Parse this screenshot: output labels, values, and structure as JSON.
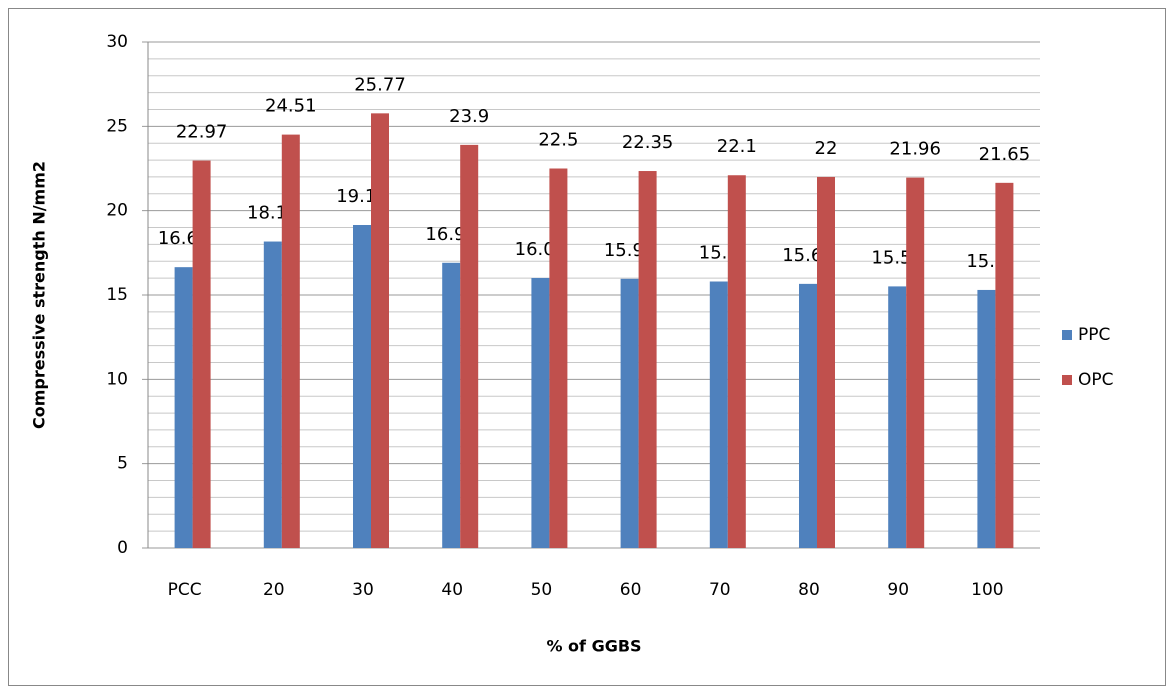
{
  "chart_data": {
    "type": "bar",
    "x_label": "% of GGBS",
    "y_label": "Compressive strength N/mm2",
    "categories": [
      "PCC",
      "20",
      "30",
      "40",
      "50",
      "60",
      "70",
      "80",
      "90",
      "100"
    ],
    "series": [
      {
        "name": "PPC",
        "color": "#4f81bd",
        "values": [
          16.65,
          18.17,
          19.15,
          16.91,
          16.01,
          15.96,
          15.8,
          15.66,
          15.51,
          15.3
        ]
      },
      {
        "name": "OPC",
        "color": "#c0504d",
        "values": [
          22.97,
          24.51,
          25.77,
          23.9,
          22.5,
          22.35,
          22.1,
          22,
          21.96,
          21.65
        ]
      }
    ],
    "ylim": [
      0,
      30
    ],
    "yticks": [
      0,
      5,
      10,
      15,
      20,
      25,
      30
    ],
    "grid": true,
    "minor_grid": true,
    "legend": "right"
  }
}
